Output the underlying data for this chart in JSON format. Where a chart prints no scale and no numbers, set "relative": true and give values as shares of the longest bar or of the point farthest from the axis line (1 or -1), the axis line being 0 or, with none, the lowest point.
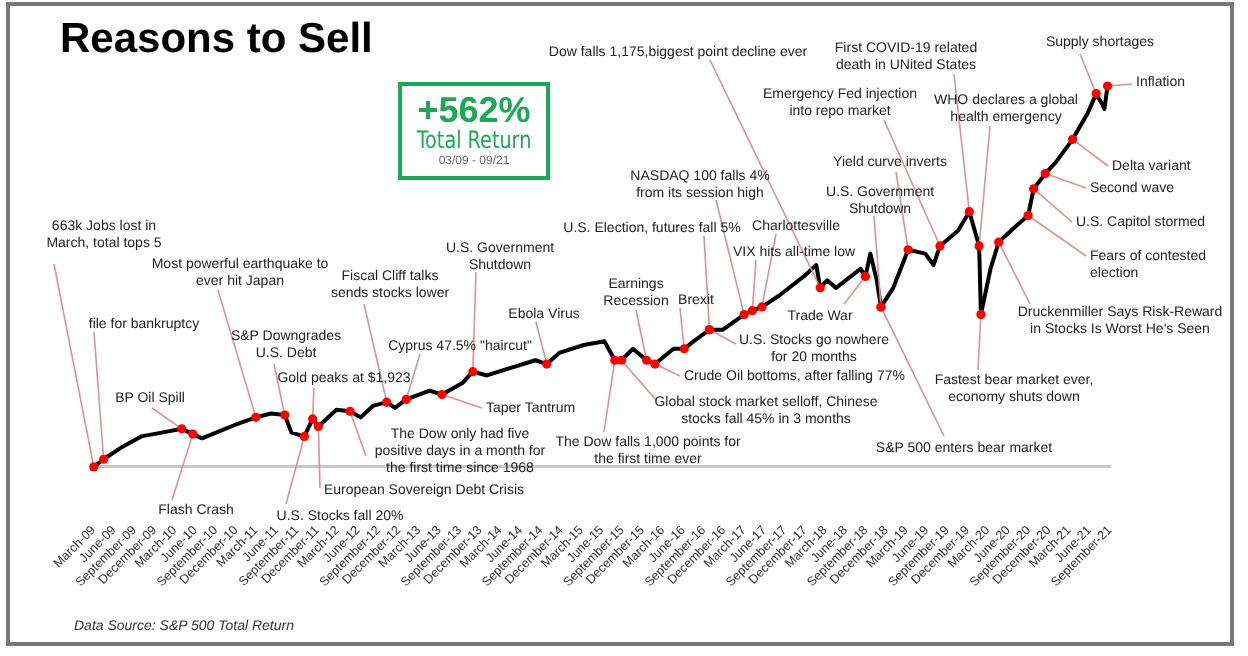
{
  "chart_data": {
    "type": "line",
    "title": "Reasons to Sell",
    "relative": true,
    "grid": false,
    "legend": false,
    "marker": "none",
    "line_style": "solid",
    "xlim": [
      "2009-03",
      "2021-09"
    ],
    "xticks": [
      {
        "value": "2009-03",
        "label": "March-09"
      },
      {
        "value": "2009-06",
        "label": "June-09"
      },
      {
        "value": "2009-09",
        "label": "September-09"
      },
      {
        "value": "2009-12",
        "label": "December-09"
      },
      {
        "value": "2010-03",
        "label": "March-10"
      },
      {
        "value": "2010-06",
        "label": "June-10"
      },
      {
        "value": "2010-09",
        "label": "September-10"
      },
      {
        "value": "2010-12",
        "label": "December-10"
      },
      {
        "value": "2011-03",
        "label": "March-11"
      },
      {
        "value": "2011-06",
        "label": "June-11"
      },
      {
        "value": "2011-09",
        "label": "September-11"
      },
      {
        "value": "2011-12",
        "label": "December-11"
      },
      {
        "value": "2012-03",
        "label": "March-12"
      },
      {
        "value": "2012-06",
        "label": "June-12"
      },
      {
        "value": "2012-09",
        "label": "September-12"
      },
      {
        "value": "2012-12",
        "label": "December-12"
      },
      {
        "value": "2013-03",
        "label": "March-13"
      },
      {
        "value": "2013-06",
        "label": "June-13"
      },
      {
        "value": "2013-09",
        "label": "September-13"
      },
      {
        "value": "2013-12",
        "label": "December-13"
      },
      {
        "value": "2014-03",
        "label": "March-14"
      },
      {
        "value": "2014-06",
        "label": "June-14"
      },
      {
        "value": "2014-09",
        "label": "September-14"
      },
      {
        "value": "2014-12",
        "label": "December-14"
      },
      {
        "value": "2015-03",
        "label": "March-15"
      },
      {
        "value": "2015-06",
        "label": "June-15"
      },
      {
        "value": "2015-09",
        "label": "September-15"
      },
      {
        "value": "2015-12",
        "label": "December-15"
      },
      {
        "value": "2016-03",
        "label": "March-16"
      },
      {
        "value": "2016-06",
        "label": "June-16"
      },
      {
        "value": "2016-09",
        "label": "September-16"
      },
      {
        "value": "2016-12",
        "label": "December-16"
      },
      {
        "value": "2017-03",
        "label": "March-17"
      },
      {
        "value": "2017-06",
        "label": "June-17"
      },
      {
        "value": "2017-09",
        "label": "September-17"
      },
      {
        "value": "2017-12",
        "label": "December-17"
      },
      {
        "value": "2018-03",
        "label": "March-18"
      },
      {
        "value": "2018-06",
        "label": "June-18"
      },
      {
        "value": "2018-09",
        "label": "September-18"
      },
      {
        "value": "2018-12",
        "label": "December-18"
      },
      {
        "value": "2019-03",
        "label": "March-19"
      },
      {
        "value": "2019-06",
        "label": "June-19"
      },
      {
        "value": "2019-09",
        "label": "September-19"
      },
      {
        "value": "2019-12",
        "label": "December-19"
      },
      {
        "value": "2020-03",
        "label": "March-20"
      },
      {
        "value": "2020-06",
        "label": "June-20"
      },
      {
        "value": "2020-09",
        "label": "September-20"
      },
      {
        "value": "2020-12",
        "label": "December-20"
      },
      {
        "value": "2021-03",
        "label": "March-21"
      },
      {
        "value": "2021-06",
        "label": "June-21"
      },
      {
        "value": "2021-09",
        "label": "September-21"
      }
    ],
    "series": [
      {
        "color": "#000000",
        "x": [
          "2009-03-02",
          "2009-04-15",
          "2009-07-01",
          "2009-10-01",
          "2010-01-01",
          "2010-04-01",
          "2010-05-21",
          "2010-07-01",
          "2010-09-02",
          "2010-11-25",
          "2011-02-28",
          "2011-05-07",
          "2011-07-08",
          "2011-08-07",
          "2011-10-04",
          "2011-11-10",
          "2011-12-06",
          "2012-02-25",
          "2012-04-26",
          "2012-06-13",
          "2012-08-07",
          "2012-10-08",
          "2012-11-14",
          "2013-01-04",
          "2013-04-19",
          "2013-06-13",
          "2013-09-13",
          "2013-10-30",
          "2014-01-01",
          "2014-04-19",
          "2014-08-07",
          "2014-09-27",
          "2014-11-25",
          "2015-03-13",
          "2015-06-13",
          "2015-07-30",
          "2015-08-29",
          "2015-10-19",
          "2015-12-20",
          "2016-01-26",
          "2016-04-19",
          "2016-06-06",
          "2016-07-19",
          "2016-09-27",
          "2016-11-25",
          "2017-03-02",
          "2017-04-08",
          "2017-05-21",
          "2017-08-07",
          "2017-11-25",
          "2018-01-20",
          "2018-02-07",
          "2018-03-10",
          "2018-04-19",
          "2018-08-07",
          "2018-08-29",
          "2018-09-20",
          "2018-10-19",
          "2018-11-07",
          "2019-01-01",
          "2019-03-09",
          "2019-05-25",
          "2019-07-01",
          "2019-07-30",
          "2019-10-19",
          "2019-12-09",
          "2020-01-22",
          "2020-01-30",
          "2020-03-13",
          "2020-04-19",
          "2020-07-01",
          "2020-08-29",
          "2020-09-23",
          "2020-11-14",
          "2021-01-01",
          "2021-03-17",
          "2021-05-25",
          "2021-07-01",
          "2021-07-30",
          "2021-08-07",
          "2021-08-21"
        ],
        "values": [
          0.0,
          0.02,
          0.05,
          0.08,
          0.09,
          0.1,
          0.086,
          0.075,
          0.09,
          0.11,
          0.13,
          0.14,
          0.136,
          0.09,
          0.08,
          0.126,
          0.106,
          0.15,
          0.146,
          0.13,
          0.16,
          0.17,
          0.155,
          0.177,
          0.2,
          0.19,
          0.22,
          0.25,
          0.24,
          0.26,
          0.28,
          0.27,
          0.3,
          0.32,
          0.33,
          0.28,
          0.28,
          0.31,
          0.28,
          0.27,
          0.31,
          0.31,
          0.33,
          0.36,
          0.36,
          0.4,
          0.41,
          0.42,
          0.45,
          0.5,
          0.53,
          0.47,
          0.49,
          0.47,
          0.52,
          0.5,
          0.56,
          0.49,
          0.42,
          0.47,
          0.57,
          0.56,
          0.53,
          0.58,
          0.62,
          0.67,
          0.58,
          0.4,
          0.52,
          0.59,
          0.63,
          0.66,
          0.73,
          0.77,
          0.8,
          0.86,
          0.93,
          0.98,
          0.95,
          0.94,
          1.0
        ]
      }
    ],
    "annotations": [
      {
        "text": "663k Jobs lost in March, total tops 5",
        "x": "2009-03-02",
        "y": 0.0
      },
      {
        "text": "file for bankruptcy",
        "x": "2009-04-15",
        "y": 0.02
      },
      {
        "text": "BP Oil Spill",
        "x": "2010-04-01",
        "y": 0.1
      },
      {
        "text": "Flash Crash",
        "x": "2010-05-21",
        "y": 0.086
      },
      {
        "text": "Most powerful earthquake to ever hit Japan",
        "x": "2011-02-28",
        "y": 0.13
      },
      {
        "text": "S&P Downgrades U.S. Debt",
        "x": "2011-07-08",
        "y": 0.136
      },
      {
        "text": "U.S. Stocks fall 20%",
        "x": "2011-10-04",
        "y": 0.08
      },
      {
        "text": "Gold peaks at $1,923",
        "x": "2011-11-10",
        "y": 0.126
      },
      {
        "text": "European Sovereign Debt Crisis",
        "x": "2011-12-06",
        "y": 0.106
      },
      {
        "text": "The Dow only had five positive days in a month for the first time since 1968",
        "x": "2012-04-26",
        "y": 0.146
      },
      {
        "text": "Fiscal Cliff talks sends stocks lower",
        "x": "2012-10-08",
        "y": 0.17
      },
      {
        "text": "Cyprus 47.5% \"haircut\"",
        "x": "2013-01-04",
        "y": 0.177
      },
      {
        "text": "Taper Tantrum",
        "x": "2013-06-13",
        "y": 0.19
      },
      {
        "text": "U.S. Government Shutdown",
        "x": "2013-10-30",
        "y": 0.25
      },
      {
        "text": "Ebola Virus",
        "x": "2014-09-27",
        "y": 0.27
      },
      {
        "text": "The Dow falls 1,000 points for the first time ever",
        "x": "2015-07-30",
        "y": 0.28
      },
      {
        "text": "Earnings Recession",
        "x": "2015-12-20",
        "y": 0.28
      },
      {
        "text": "Global stock market selloff, Chinese stocks fall 45% in 3 months",
        "x": "2015-08-29",
        "y": 0.28
      },
      {
        "text": "Crude Oil bottoms, after falling 77%",
        "x": "2016-01-26",
        "y": 0.27
      },
      {
        "text": "Brexit",
        "x": "2016-06-06",
        "y": 0.31
      },
      {
        "text": "U.S. Election, futures fall 5%",
        "x": "2016-09-27",
        "y": 0.36
      },
      {
        "text": "U.S. Stocks go nowhere for 20 months",
        "x": "2016-09-27",
        "y": 0.36
      },
      {
        "text": "NASDAQ 100 falls 4% from its session high",
        "x": "2017-03-02",
        "y": 0.4
      },
      {
        "text": "VIX hits all-time low",
        "x": "2017-04-08",
        "y": 0.41
      },
      {
        "text": "Charlottesville",
        "x": "2017-05-21",
        "y": 0.42
      },
      {
        "text": "Dow falls 1,175,biggest point decline ever",
        "x": "2018-02-07",
        "y": 0.47
      },
      {
        "text": "Trade War",
        "x": "2018-08-29",
        "y": 0.5
      },
      {
        "text": "U.S. Government Shutdown",
        "x": "2018-11-07",
        "y": 0.42
      },
      {
        "text": "S&P 500 enters bear market",
        "x": "2018-11-07",
        "y": 0.42
      },
      {
        "text": "Yield curve inverts",
        "x": "2019-03-09",
        "y": 0.57
      },
      {
        "text": "Emergency Fed injection into repo market",
        "x": "2019-07-30",
        "y": 0.58
      },
      {
        "text": "First COVID-19 related death in UNited States",
        "x": "2019-12-09",
        "y": 0.67
      },
      {
        "text": "WHO declares a global health emergency",
        "x": "2020-01-22",
        "y": 0.58
      },
      {
        "text": "Fastest bear market ever, economy shuts down",
        "x": "2020-01-30",
        "y": 0.4
      },
      {
        "text": "Druckenmiller Says Risk-Reward in Stocks Is Worst He's Seen",
        "x": "2020-04-19",
        "y": 0.59
      },
      {
        "text": "Fears of contested election",
        "x": "2020-08-29",
        "y": 0.66
      },
      {
        "text": "U.S. Capitol stormed",
        "x": "2020-09-23",
        "y": 0.73
      },
      {
        "text": "Second wave",
        "x": "2020-11-14",
        "y": 0.77
      },
      {
        "text": "Delta variant",
        "x": "2021-03-17",
        "y": 0.86
      },
      {
        "text": "Supply shortages",
        "x": "2021-07-01",
        "y": 0.98
      },
      {
        "text": "Inflation",
        "x": "2021-08-21",
        "y": 1.0
      },
      "+562%",
      "Total Return",
      "03/09 - 09/21",
      "Data Source: S&P 500 Total Return"
    ]
  }
}
